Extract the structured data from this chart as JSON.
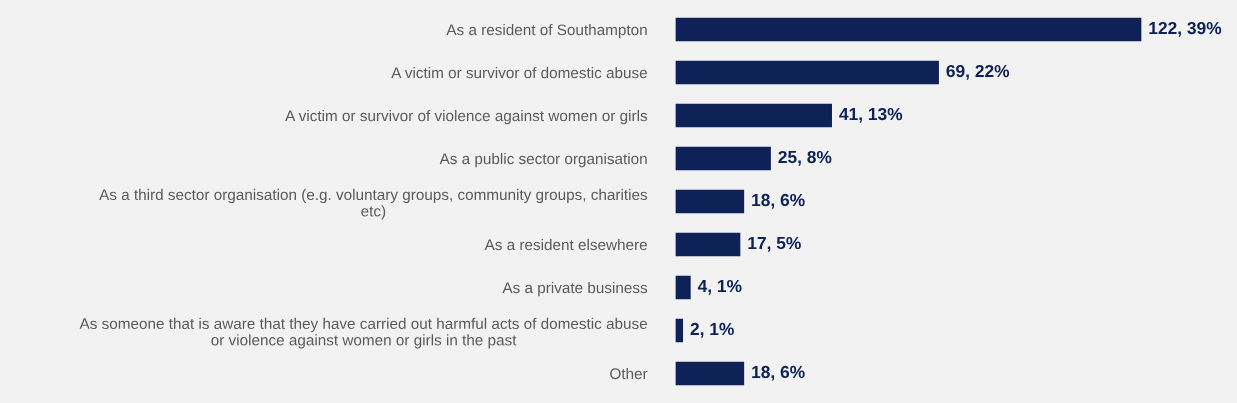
{
  "chart_data": {
    "type": "bar",
    "orientation": "horizontal",
    "categories": [
      "As a resident of Southampton",
      "A victim or survivor of domestic abuse",
      "A victim or survivor of violence against women or girls",
      "As a public sector organisation",
      "As a third sector organisation (e.g. voluntary groups, community groups, charities\netc)",
      "As a resident elsewhere",
      "As a private business",
      "As someone that is aware that they have carried out harmful acts of domestic abuse\nor violence against women or girls in the past",
      "Other"
    ],
    "values": [
      122,
      69,
      41,
      25,
      18,
      17,
      4,
      2,
      18
    ],
    "value_labels": [
      "122, 39%",
      "69, 22%",
      "41, 13%",
      "25, 8%",
      "18, 6%",
      "17, 5%",
      "4, 1%",
      "2, 1%",
      "18, 6%"
    ],
    "color": "#0e2258",
    "grid": false,
    "legend": false
  }
}
